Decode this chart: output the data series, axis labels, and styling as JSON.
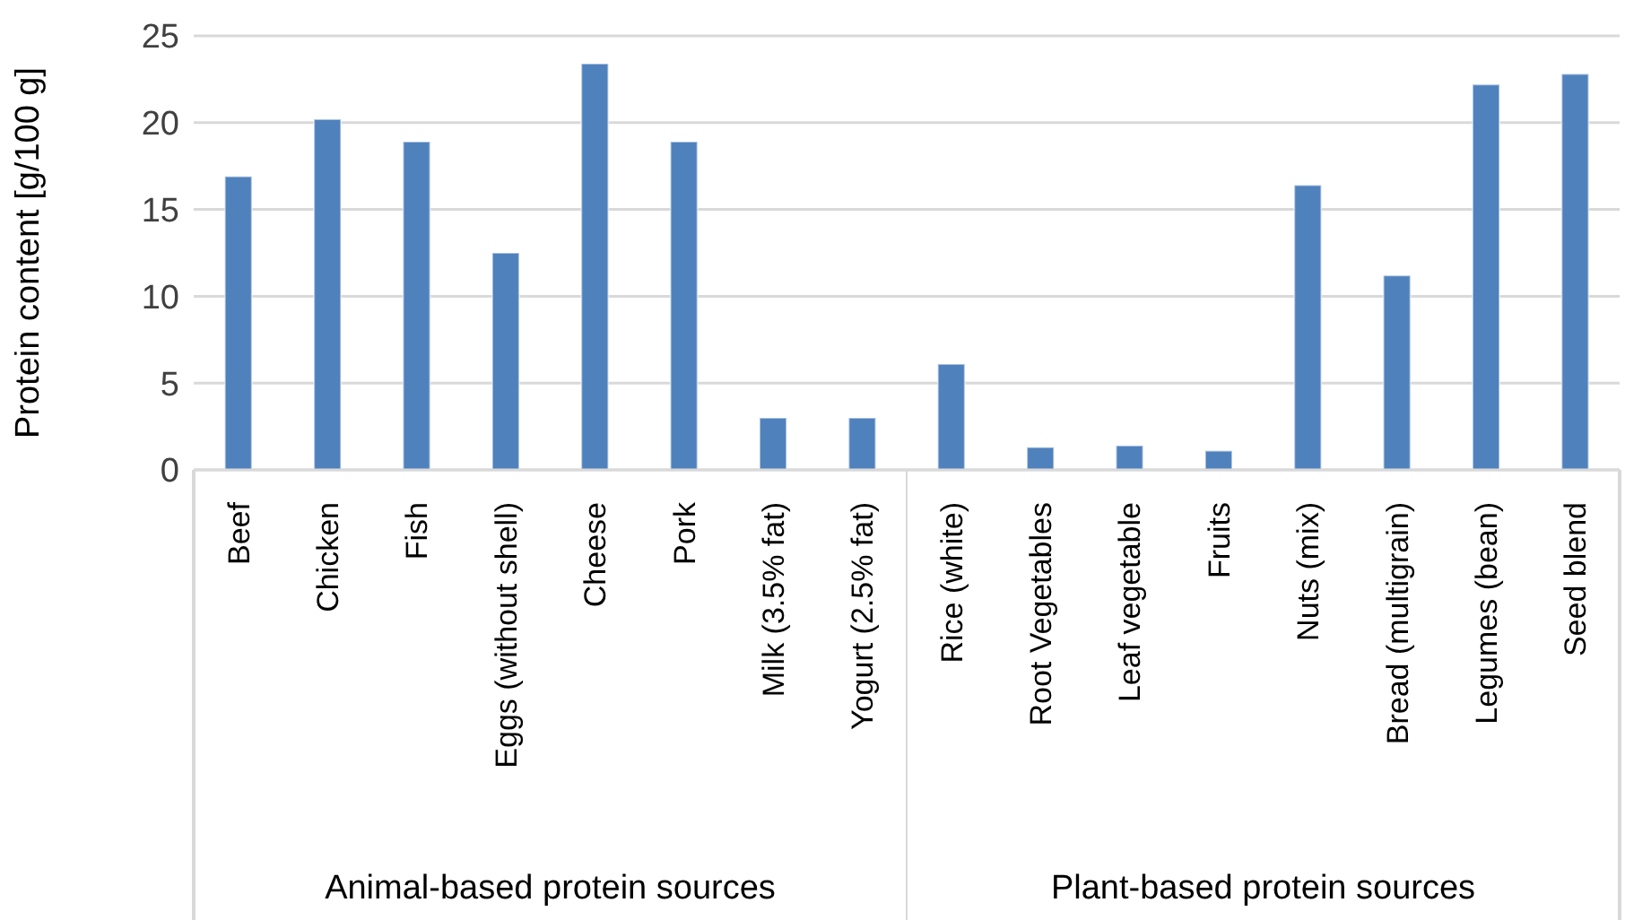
{
  "chart_data": {
    "type": "bar",
    "ylabel": "Protein content [g/100 g]",
    "categories": [
      "Beef",
      "Chicken",
      "Fish",
      "Eggs (without shell)",
      "Cheese",
      "Pork",
      "Milk (3.5% fat)",
      "Yogurt (2.5% fat)",
      "Rice (white)",
      "Root Vegetables",
      "Leaf vegetable",
      "Fruits",
      "Nuts (mix)",
      "Bread (multigrain)",
      "Legumes (bean)",
      "Seed blend"
    ],
    "values": [
      16.9,
      20.2,
      18.9,
      12.5,
      23.4,
      18.9,
      3.0,
      3.0,
      6.1,
      1.3,
      1.4,
      1.1,
      16.4,
      11.2,
      22.2,
      22.8
    ],
    "color": "#4f81bd",
    "ylim": [
      0,
      25
    ],
    "yticks": [
      0,
      5,
      10,
      15,
      20,
      25
    ],
    "grid": "y",
    "annotations": [
      "Animal-based protein sources",
      "Plant-based protein sources"
    ]
  }
}
